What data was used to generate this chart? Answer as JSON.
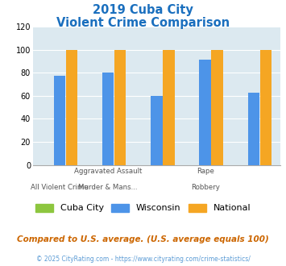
{
  "title_line1": "2019 Cuba City",
  "title_line2": "Violent Crime Comparison",
  "series": {
    "Cuba City": [
      0,
      0,
      0,
      0,
      0
    ],
    "Wisconsin": [
      77,
      80,
      60,
      91,
      63
    ],
    "National": [
      100,
      100,
      100,
      100,
      100
    ]
  },
  "colors": {
    "Cuba City": "#8dc63f",
    "Wisconsin": "#4d94e8",
    "National": "#f5a623"
  },
  "ylim": [
    0,
    120
  ],
  "yticks": [
    0,
    20,
    40,
    60,
    80,
    100,
    120
  ],
  "plot_bg": "#dce9f0",
  "title_color": "#1a6fbe",
  "x_top_labels": [
    "",
    "Aggravated Assault",
    "",
    "Rape",
    ""
  ],
  "x_bot_labels": [
    "All Violent Crime",
    "Murder & Mans...",
    "",
    "Robbery",
    ""
  ],
  "footer_text": "Compared to U.S. average. (U.S. average equals 100)",
  "copyright_text": "© 2025 CityRating.com - https://www.cityrating.com/crime-statistics/",
  "footer_color": "#cc6600",
  "copyright_color": "#5b9bd5",
  "n_groups": 5
}
